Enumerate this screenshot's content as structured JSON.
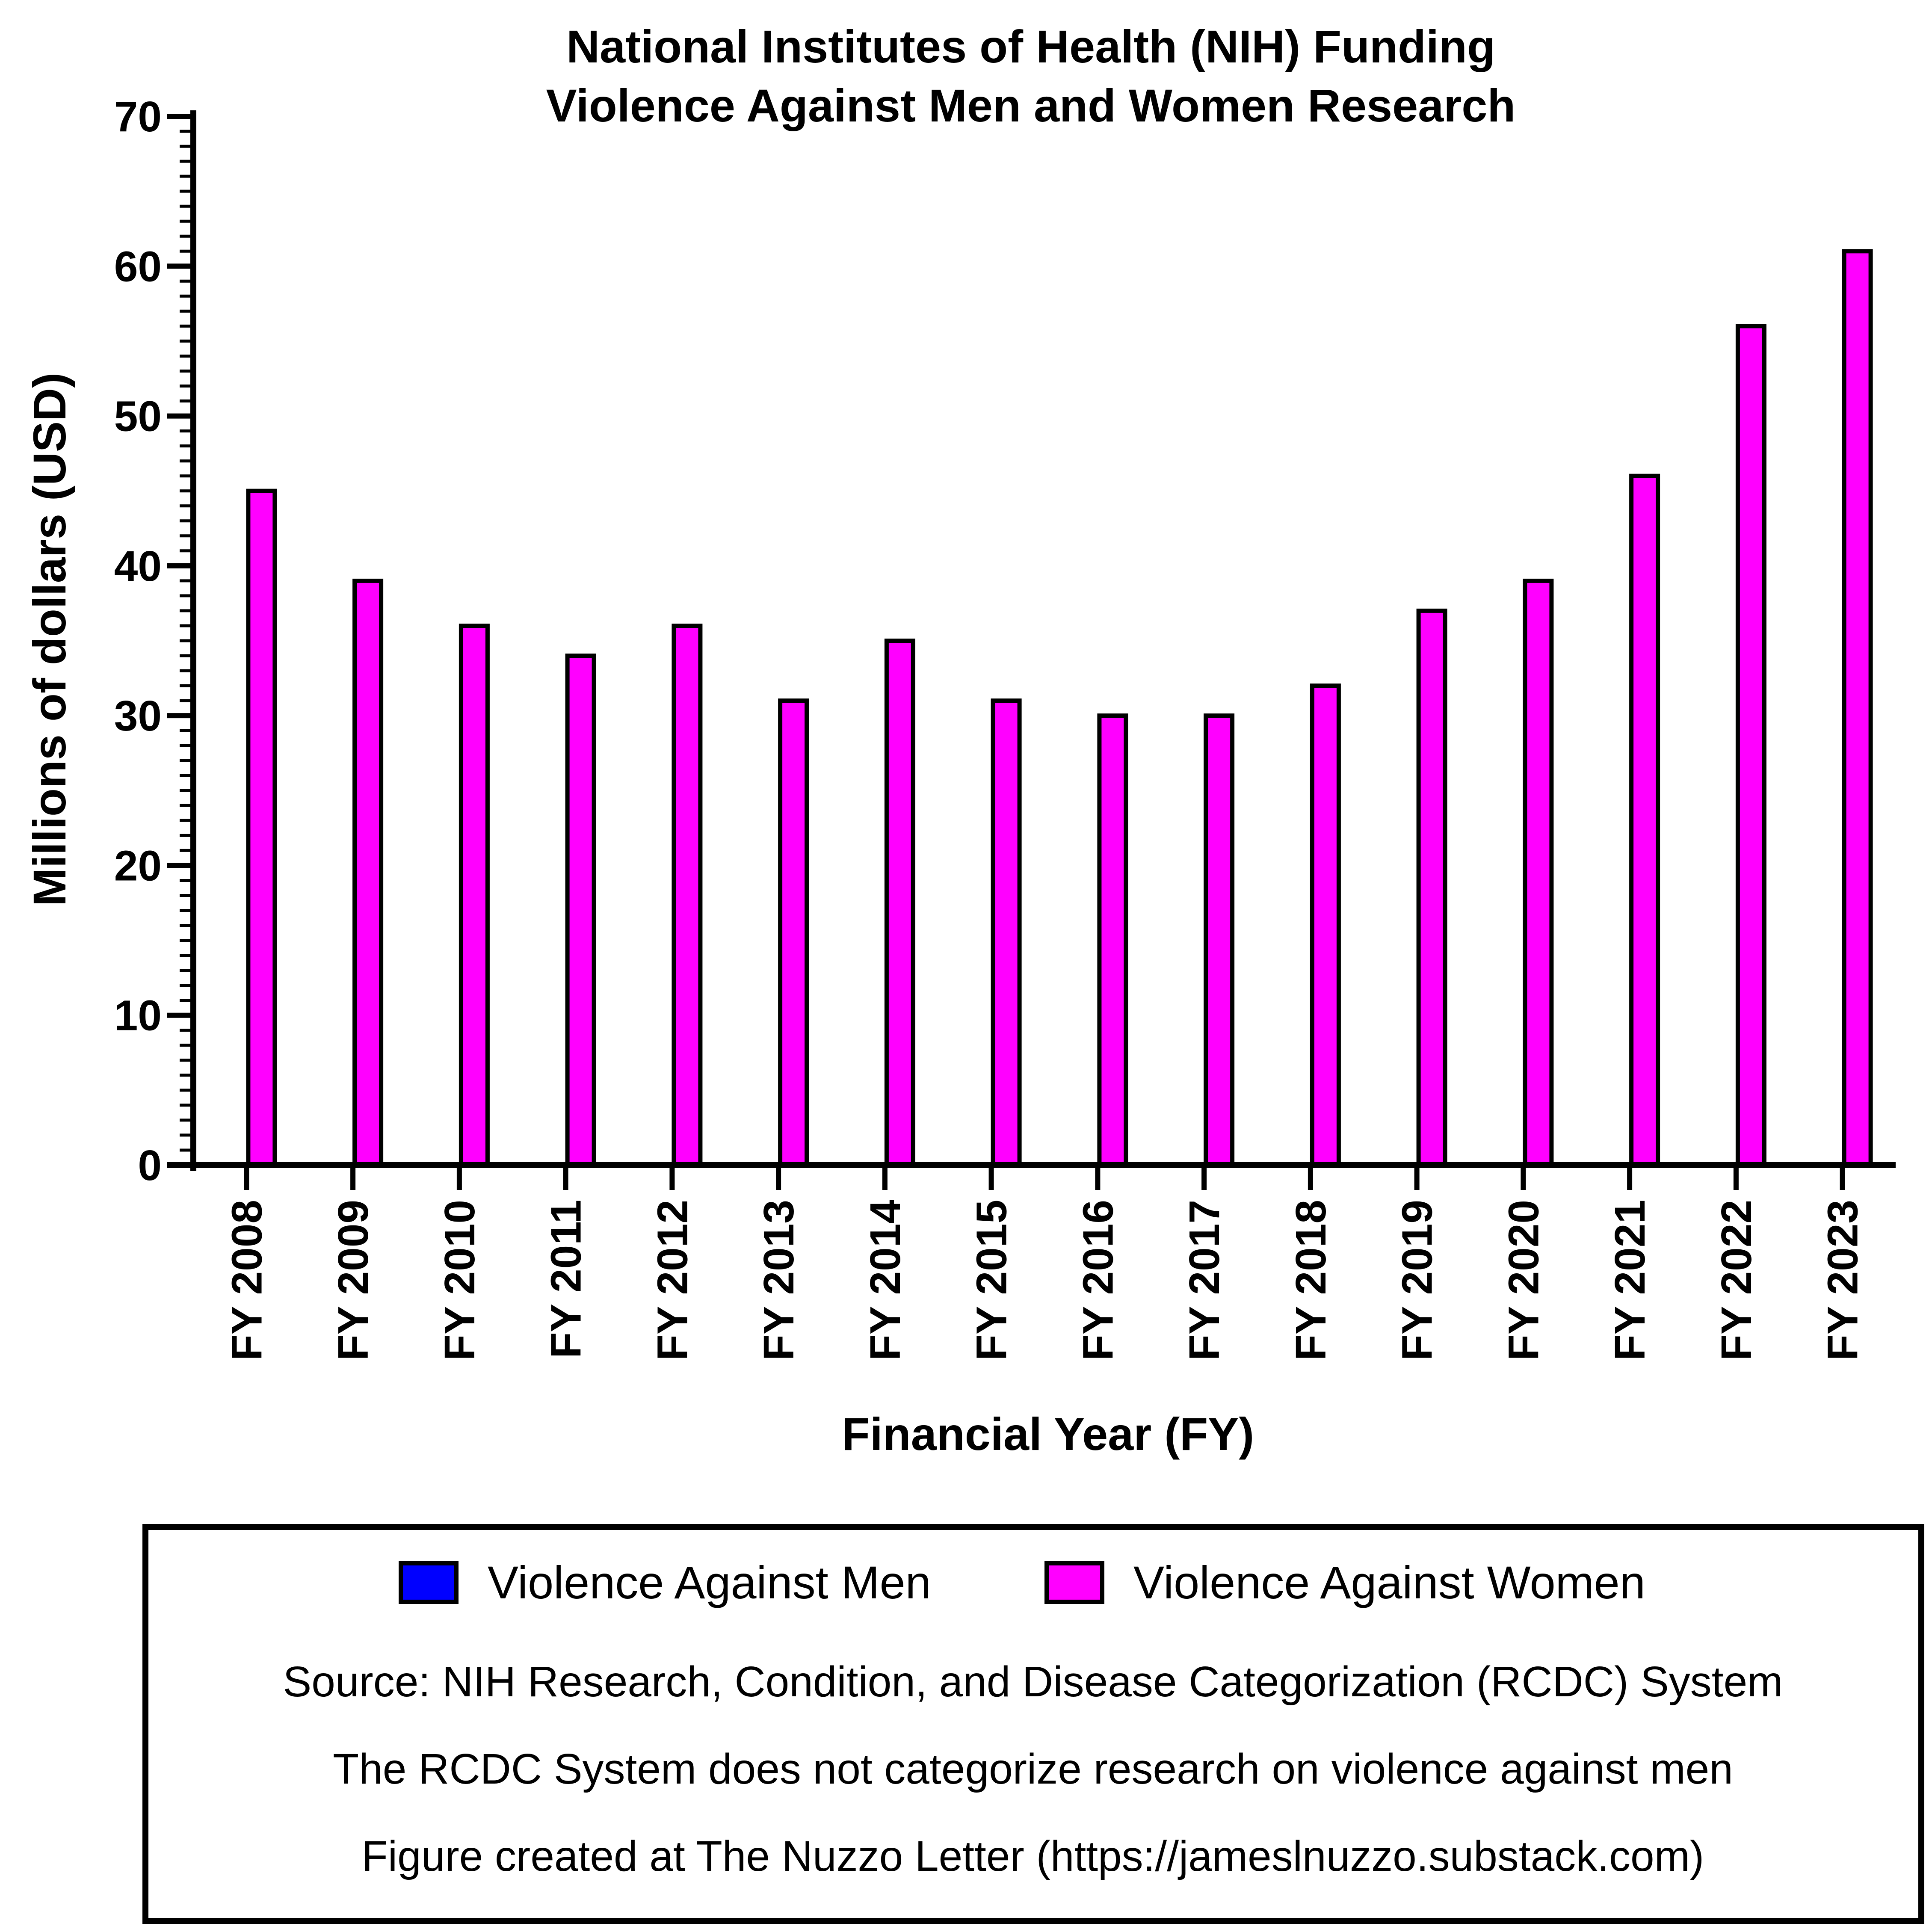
{
  "chart_data": {
    "type": "bar",
    "title_lines": [
      "National Institutes of Health (NIH) Funding",
      "Violence Against Men and Women Research"
    ],
    "xlabel": "Financial Year (FY)",
    "ylabel": "Millions of dollars (USD)",
    "ylim": [
      0,
      70
    ],
    "yticks": [
      0,
      10,
      20,
      30,
      40,
      50,
      60,
      70
    ],
    "grid": false,
    "categories": [
      "FY 2008",
      "FY 2009",
      "FY 2010",
      "FY 2011",
      "FY 2012",
      "FY 2013",
      "FY 2014",
      "FY 2015",
      "FY 2016",
      "FY 2017",
      "FY 2018",
      "FY 2019",
      "FY 2020",
      "FY 2021",
      "FY 2022",
      "FY 2023"
    ],
    "series": [
      {
        "name": "Violence Against Men",
        "color": "#0000ff",
        "values": [
          0,
          0,
          0,
          0,
          0,
          0,
          0,
          0,
          0,
          0,
          0,
          0,
          0,
          0,
          0,
          0
        ]
      },
      {
        "name": "Violence Against Women",
        "color": "#ff00ff",
        "values": [
          45,
          39,
          36,
          34,
          36,
          31,
          35,
          31,
          30,
          30,
          32,
          37,
          39,
          46,
          56,
          61
        ]
      }
    ],
    "legend_placement": "bottom",
    "notes": [
      "Source: NIH Research, Condition, and Disease Categorization (RCDC) System",
      "The RCDC System does not categorize research on violence against men",
      "Figure created at The Nuzzo Letter (https://jameslnuzzo.substack.com)"
    ]
  }
}
